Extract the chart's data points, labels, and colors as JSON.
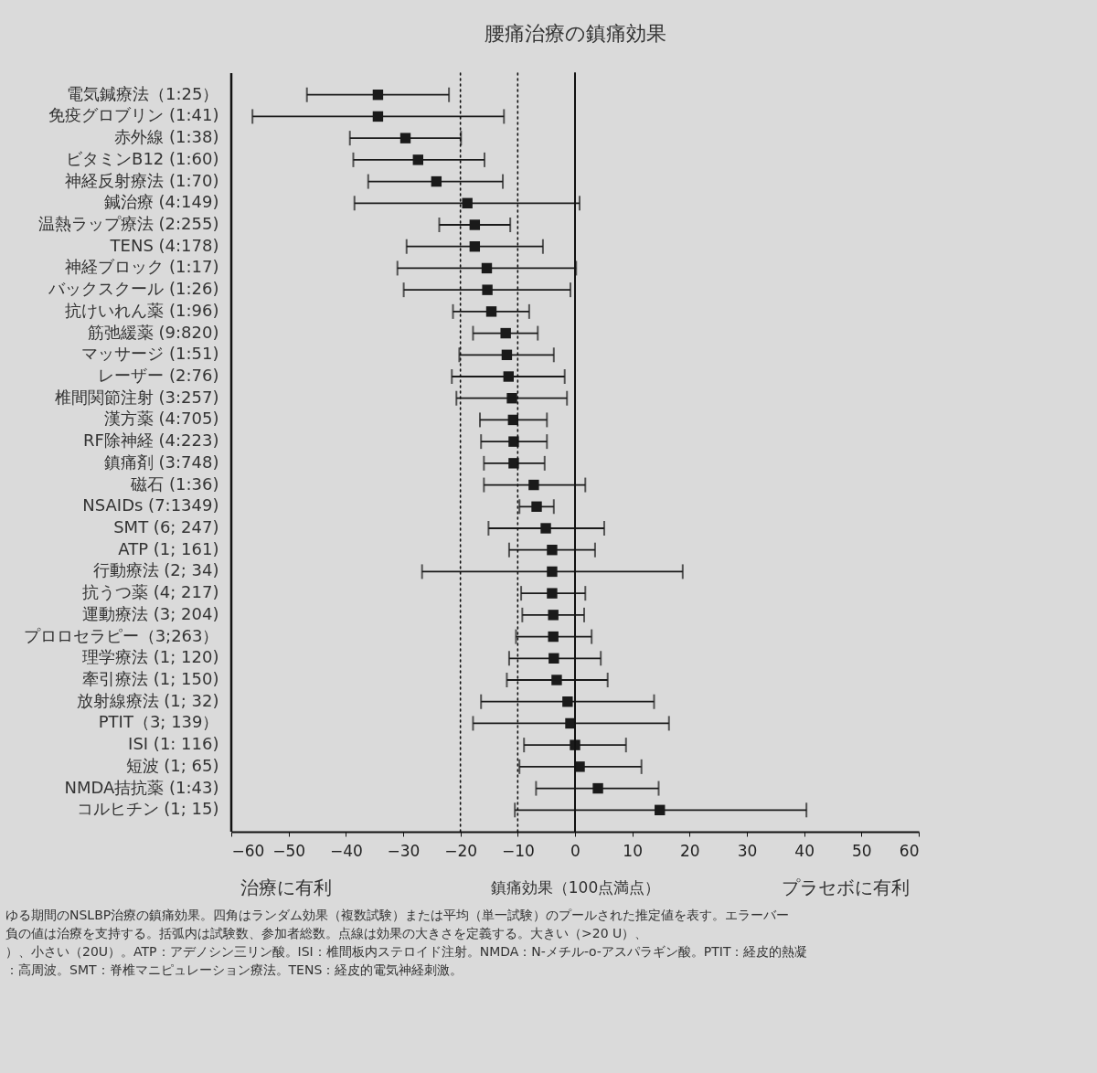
{
  "chart_data": {
    "type": "scatter",
    "orientation": "horizontal",
    "title": "腰痛治療の鎮痛効果",
    "xlabel": "鎮痛効果（100点満点）",
    "categories": [
      "電気鍼療法（1:25）",
      "免疫グロブリン (1:41)",
      "赤外線 (1:38)",
      "ビタミンB12 (1:60)",
      "神経反射療法 (1:70)",
      "鍼治療 (4:149)",
      "温熱ラップ療法 (2:255)",
      "TENS (4:178)",
      "神経ブロック (1:17)",
      "バックスクール (1:26)",
      "抗けいれん薬 (1:96)",
      "筋弛緩薬 (9:820)",
      "マッサージ (1:51)",
      "レーザー (2:76)",
      "椎間関節注射 (3:257)",
      "漢方薬 (4:705)",
      "RF除神経 (4:223)",
      "鎮痛剤 (3:748)",
      "磁石 (1:36)",
      "NSAIDs (7:1349)",
      "SMT (6; 247)",
      "ATP (1; 161)",
      "行動療法 (2; 34)",
      "抗うつ薬 (4; 217)",
      "運動療法 (3; 204)",
      "プロロセラピー（3;263）",
      "理学療法 (1; 120)",
      "牽引療法 (1; 150)",
      "放射線療法 (1; 32)",
      "PTIT（3; 139）",
      "ISI (1: 116)",
      "短波 (1; 65)",
      "NMDA拮抗薬 (1:43)",
      "コルヒチン (1; 15)"
    ],
    "values": [
      -34.4,
      -34.4,
      -29.6,
      -27.4,
      -24.2,
      -18.8,
      -17.5,
      -17.5,
      -15.4,
      -15.3,
      -14.6,
      -12.1,
      -11.9,
      -11.6,
      -11.0,
      -10.8,
      -10.7,
      -10.7,
      -7.2,
      -6.7,
      -5.1,
      -4.0,
      -4.0,
      -4.0,
      -3.8,
      -3.8,
      -3.7,
      -3.2,
      -1.3,
      -0.8,
      0.0,
      0.8,
      4.0,
      14.8
    ],
    "errors": [
      [
        -46.8,
        -22.0
      ],
      [
        -56.3,
        -12.4
      ],
      [
        -39.3,
        -19.9
      ],
      [
        -38.7,
        -15.8
      ],
      [
        -36.1,
        -12.6
      ],
      [
        -38.5,
        0.8
      ],
      [
        -23.7,
        -11.3
      ],
      [
        -29.4,
        -5.6
      ],
      [
        -31.0,
        0.2
      ],
      [
        -29.9,
        -0.8
      ],
      [
        -21.3,
        -8.0
      ],
      [
        -17.8,
        -6.5
      ],
      [
        -20.2,
        -3.7
      ],
      [
        -21.5,
        -1.8
      ],
      [
        -20.7,
        -1.4
      ],
      [
        -16.6,
        -4.9
      ],
      [
        -16.4,
        -4.9
      ],
      [
        -15.9,
        -5.3
      ],
      [
        -15.9,
        1.8
      ],
      [
        -9.7,
        -3.7
      ],
      [
        -15.1,
        5.1
      ],
      [
        -11.5,
        3.5
      ],
      [
        -26.7,
        18.8
      ],
      [
        -9.4,
        1.8
      ],
      [
        -9.2,
        1.6
      ],
      [
        -10.3,
        2.9
      ],
      [
        -11.5,
        4.5
      ],
      [
        -11.9,
        5.7
      ],
      [
        -16.4,
        13.8
      ],
      [
        -17.8,
        16.4
      ],
      [
        -8.9,
        8.9
      ],
      [
        -9.7,
        11.6
      ],
      [
        -6.8,
        14.6
      ],
      [
        -10.5,
        40.4
      ]
    ],
    "color": "#1a1a1a",
    "marker": "square",
    "xlim": [
      -60,
      60
    ],
    "xticks": [
      -60,
      -50,
      -40,
      -30,
      -20,
      -10,
      0,
      10,
      20,
      30,
      40,
      50,
      60
    ],
    "ref_lines": [
      {
        "axis": "x",
        "value": -20,
        "line_style": "dotted"
      },
      {
        "axis": "x",
        "value": -10,
        "line_style": "dotted"
      },
      {
        "axis": "x",
        "value": 0,
        "line_style": "solid"
      }
    ],
    "annotations": [
      "治療に有利",
      "プラセボに有利",
      "ゆる期間のNSLBP治療の鎮痛効果。四角はランダム効果（複数試験）または平均（単一試験）のプールされた推定値を表す。エラーバー",
      "負の値は治療を支持する。括弧内は試験数、参加者総数。点線は効果の大きさを定義する。大きい（>20 U）、",
      "）、小さい（20U）。ATP：アデノシン三リン酸。ISI：椎間板内ステロイド注射。NMDA：N-メチル-o-アスパラギン酸。PTIT：経皮的熱凝",
      "：高周波。SMT：脊椎マニピュレーション療法。TENS：経皮的電気神経刺激。"
    ]
  }
}
